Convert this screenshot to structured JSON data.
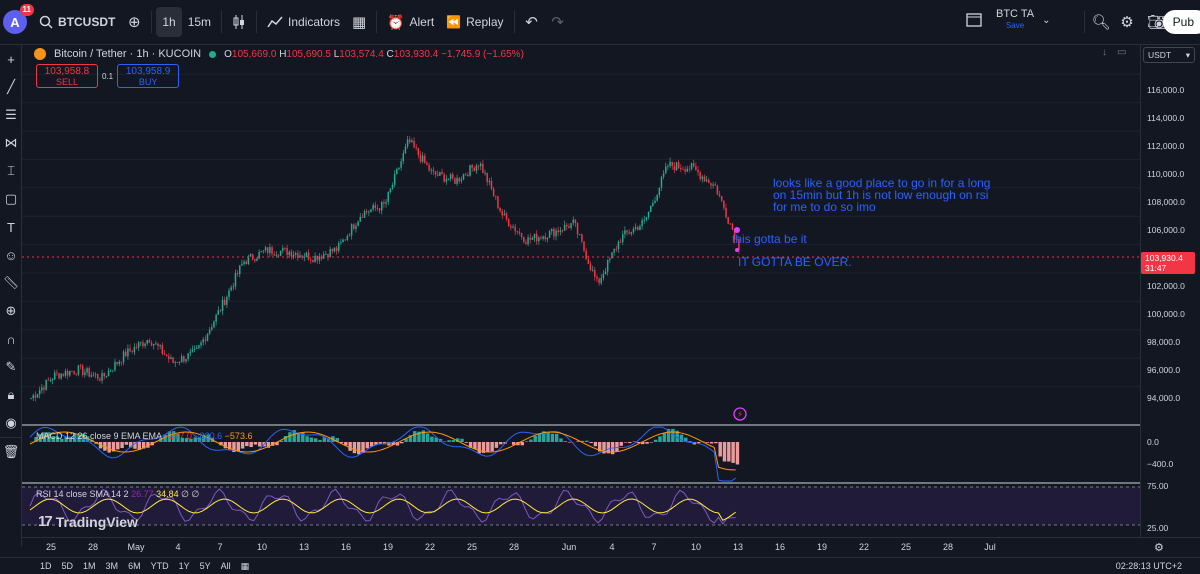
{
  "topbar": {
    "avatar_letter": "A",
    "notification_count": "11",
    "symbol": "BTCUSDT",
    "intervals": [
      "1h",
      "15m"
    ],
    "indicators_label": "Indicators",
    "alert_label": "Alert",
    "replay_label": "Replay",
    "layout_name": "BTC TA",
    "layout_status": "Save",
    "publish_label": "Pub"
  },
  "legend": {
    "title": "Bitcoin / Tether · 1h · KUCOIN",
    "open_label": "O",
    "open": "105,669.0",
    "high_label": "H",
    "high": "105,690.5",
    "low_label": "L",
    "low": "103,574.4",
    "close_label": "C",
    "close": "103,930.4",
    "change": "−1,745.9 (−1.65%)"
  },
  "trade": {
    "sell_price": "103,958.8",
    "sell_label": "SELL",
    "quantity": "0.1",
    "buy_price": "103,958.9",
    "buy_label": "BUY"
  },
  "notes": {
    "long_note": "looks like a good place to go in for a long\non 15min but 1h is not low enough on rsi\nfor me to do so imo",
    "note_2": "this gotta be it",
    "note_3": "IT GOTTA BE OVER."
  },
  "macd": {
    "label": "MACD 12 26 close 9 EMA EMA",
    "hist": "−247.0",
    "macd": "−820.6",
    "signal": "−573.6",
    "ticks": [
      "0.0",
      "−400.0"
    ]
  },
  "rsi": {
    "label": "RSI 14 close SMA 14 2",
    "rsi": "26.77",
    "sma": "34.84",
    "extra": "∅ ∅",
    "ticks": [
      "75.00",
      "25.00"
    ]
  },
  "brand": "TradingView",
  "price_axis": {
    "currency": "USDT",
    "labels": [
      "116,000.0",
      "114,000.0",
      "112,000.0",
      "110,000.0",
      "108,000.0",
      "106,000.0",
      "102,000.0",
      "100,000.0",
      "98,000.0",
      "96,000.0",
      "94,000.0"
    ],
    "current_price": "103,930.4",
    "countdown": "31:47"
  },
  "time_axis": [
    "25",
    "28",
    "May",
    "4",
    "7",
    "10",
    "13",
    "16",
    "19",
    "22",
    "25",
    "28",
    "Jun",
    "4",
    "7",
    "10",
    "13",
    "16",
    "19",
    "22",
    "25",
    "28",
    "Jul"
  ],
  "bottombar": {
    "ranges": [
      "1D",
      "5D",
      "1M",
      "3M",
      "6M",
      "YTD",
      "1Y",
      "5Y",
      "All"
    ],
    "clock": "02:28:13 UTC+2"
  },
  "chart_data": {
    "type": "candlestick",
    "x": [
      "Apr 24",
      "Apr 26",
      "Apr 28",
      "Apr 30",
      "May 1",
      "May 3",
      "May 5",
      "May 7",
      "May 8",
      "May 9",
      "May 10",
      "May 12",
      "May 14",
      "May 16",
      "May 18",
      "May 20",
      "May 22",
      "May 23",
      "May 25",
      "May 27",
      "May 29",
      "May 31",
      "Jun 2",
      "Jun 4",
      "Jun 5",
      "Jun 6",
      "Jun 8",
      "Jun 10",
      "Jun 11",
      "Jun 12",
      "Jun 13"
    ],
    "close": [
      93200,
      94800,
      95200,
      94600,
      96300,
      97400,
      95700,
      96400,
      99400,
      102800,
      103600,
      103500,
      103100,
      103700,
      106200,
      106800,
      111300,
      109000,
      108500,
      109800,
      106000,
      104300,
      104800,
      105500,
      101200,
      104500,
      105600,
      109600,
      109400,
      108100,
      103930
    ],
    "ylim": [
      92000,
      117000
    ],
    "colors": {
      "up": "#22ab94",
      "down": "#f23645"
    }
  }
}
